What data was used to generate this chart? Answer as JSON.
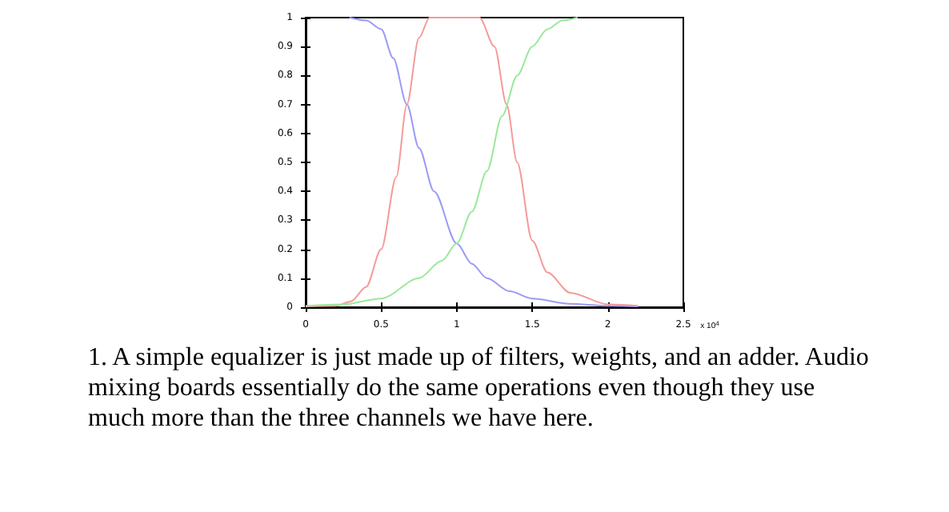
{
  "chart_data": {
    "type": "line",
    "xlabel": "x 10$^{4}$",
    "annotations": [
      "1. A simple equalizer is just made up of filters, weights, and an adder. Audio mixing boards essentially do the same operations even though they use much more than the three channels we have here."
    ],
    "xlim": [
      0,
      2.5
    ],
    "ylim": [
      0,
      1
    ],
    "xticks": [
      0,
      0.5,
      1,
      1.5,
      2,
      2.5
    ],
    "yticks": [
      0,
      0.1,
      0.2,
      0.3,
      0.4,
      0.5,
      0.6,
      0.7,
      0.8,
      0.9,
      1
    ],
    "grid": false,
    "marker": "none",
    "line_style": "solid",
    "series": [
      {
        "color": "#9b9bf5",
        "x": [
          0.29,
          0.4,
          0.5,
          0.58,
          0.67,
          0.75,
          0.85,
          1,
          1.1,
          1.2,
          1.35,
          1.5,
          1.75,
          2,
          2.2
        ],
        "values": [
          1,
          0.99,
          0.96,
          0.86,
          0.7,
          0.55,
          0.4,
          0.22,
          0.15,
          0.1,
          0.055,
          0.03,
          0.012,
          0.005,
          0.003
        ]
      },
      {
        "color": "#f59b9b",
        "x": [
          0,
          0.2,
          0.3,
          0.4,
          0.5,
          0.6,
          0.67,
          0.75,
          0.82,
          1.15,
          1.25,
          1.33,
          1.4,
          1.5,
          1.6,
          1.75,
          2,
          2.2
        ],
        "values": [
          0.003,
          0.005,
          0.02,
          0.07,
          0.2,
          0.45,
          0.7,
          0.93,
          1,
          1,
          0.9,
          0.7,
          0.5,
          0.23,
          0.12,
          0.05,
          0.01,
          0.005
        ]
      },
      {
        "color": "#9be89b",
        "x": [
          0,
          0.25,
          0.5,
          0.75,
          0.9,
          1,
          1.1,
          1.2,
          1.3,
          1.4,
          1.5,
          1.6,
          1.7,
          1.8
        ],
        "values": [
          0.005,
          0.01,
          0.03,
          0.1,
          0.16,
          0.22,
          0.33,
          0.47,
          0.66,
          0.8,
          0.9,
          0.96,
          0.99,
          1
        ]
      }
    ]
  }
}
